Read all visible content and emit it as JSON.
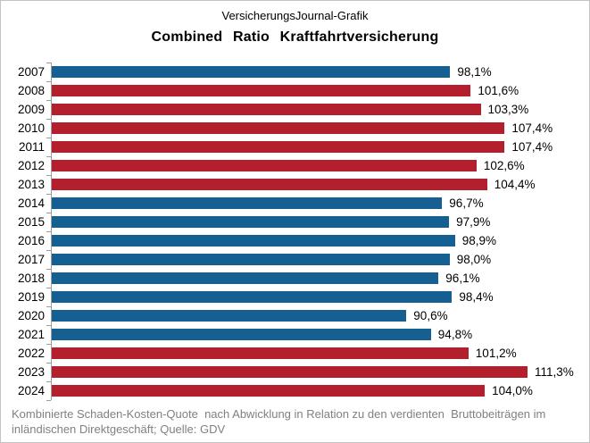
{
  "source_label": "VersicherungsJournal-Grafik",
  "footnote": "Kombinierte Schaden-Kosten-Quote  nach Abwicklung in Relation zu den verdienten  Bruttobeiträgen im\ninländischen Direktgeschäft; Quelle: GDV",
  "colors": {
    "blue": "#155f92",
    "red": "#b41f2e",
    "axis": "#9b9b9b",
    "footnote_text": "#808080",
    "frame_border": "#c3c3c3"
  },
  "chart_data": {
    "type": "bar",
    "orientation": "horizontal",
    "title": "Combined Ratio Kraftfahrtversicherung",
    "categories": [
      "2007",
      "2008",
      "2009",
      "2010",
      "2011",
      "2012",
      "2013",
      "2014",
      "2015",
      "2016",
      "2017",
      "2018",
      "2019",
      "2020",
      "2021",
      "2022",
      "2023",
      "2024"
    ],
    "values": [
      98.1,
      101.6,
      103.3,
      107.4,
      107.4,
      102.6,
      104.4,
      96.7,
      97.9,
      98.9,
      98.0,
      96.1,
      98.4,
      90.6,
      94.8,
      101.2,
      111.3,
      104.0
    ],
    "value_labels": [
      "98,1%",
      "101,6%",
      "103,3%",
      "107,4%",
      "107,4%",
      "102,6%",
      "104,4%",
      "96,7%",
      "97,9%",
      "98,9%",
      "98,0%",
      "96,1%",
      "98,4%",
      "90,6%",
      "94,8%",
      "101,2%",
      "111,3%",
      "104,0%"
    ],
    "unit": "%",
    "xlim": [
      30,
      120
    ],
    "grid": false,
    "legend": false,
    "color_rule": "red if value >= 100 else blue"
  }
}
